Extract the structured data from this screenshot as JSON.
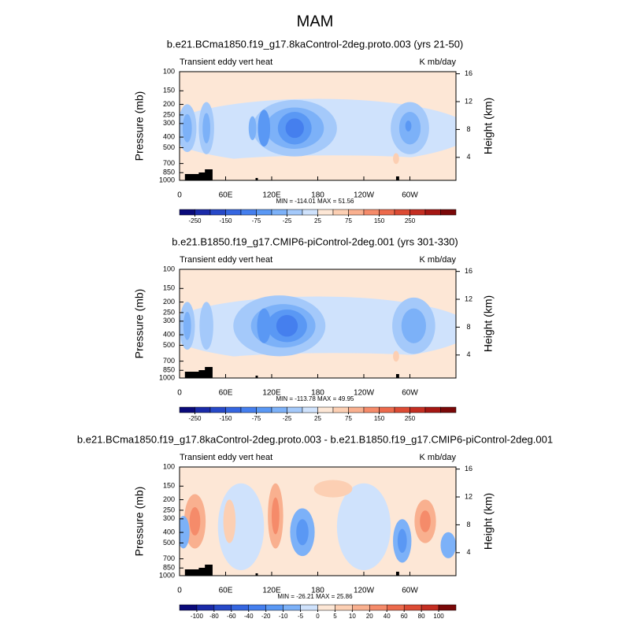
{
  "title": "MAM",
  "chart_data": [
    {
      "type": "contour",
      "title": "b.e21.BCma1850.f19_g17.8kaControl-2deg.proto.003 (yrs 21-50)",
      "left_label": "Transient eddy vert heat",
      "right_label": "K mb/day",
      "ylabel": "Pressure (mb)",
      "y2label": "Height (km)",
      "xlim": [
        0,
        360
      ],
      "xticks": [
        0,
        {
          "value": 60,
          "label": "60E"
        },
        {
          "value": 120,
          "label": "120E"
        },
        180,
        {
          "value": 240,
          "label": "120W"
        },
        {
          "value": 300,
          "label": "60W"
        }
      ],
      "ylim": [
        1000,
        100
      ],
      "ylog": true,
      "yticks": [
        100,
        150,
        200,
        250,
        300,
        400,
        500,
        700,
        850,
        1000
      ],
      "y2lim": [
        0.7,
        16.3
      ],
      "y2ticks": [
        4,
        8,
        12,
        16
      ],
      "annotation": "MIN = -114.01  MAX =  51.56",
      "colorbar": {
        "ticks": [
          -250,
          -150,
          -75,
          -25,
          25,
          75,
          150,
          250
        ],
        "colors": [
          "#0a0a7a",
          "#1a2aa8",
          "#2749c8",
          "#3566e0",
          "#457fee",
          "#5a98f4",
          "#7cb1f8",
          "#a4c9fa",
          "#cfe2fc",
          "#fde7d6",
          "#fccfb3",
          "#f9b08f",
          "#f58b6a",
          "#ec6a4c",
          "#dc4b34",
          "#c42e22",
          "#a51713",
          "#7a0808"
        ]
      }
    },
    {
      "type": "contour",
      "title": "b.e21.B1850.f19_g17.CMIP6-piControl-2deg.001 (yrs 301-330)",
      "left_label": "Transient eddy vert heat",
      "right_label": "K mb/day",
      "ylabel": "Pressure (mb)",
      "y2label": "Height (km)",
      "xlim": [
        0,
        360
      ],
      "xticks": [
        0,
        {
          "value": 60,
          "label": "60E"
        },
        {
          "value": 120,
          "label": "120E"
        },
        180,
        {
          "value": 240,
          "label": "120W"
        },
        {
          "value": 300,
          "label": "60W"
        }
      ],
      "ylim": [
        1000,
        100
      ],
      "ylog": true,
      "yticks": [
        100,
        150,
        200,
        250,
        300,
        400,
        500,
        700,
        850,
        1000
      ],
      "y2lim": [
        0.7,
        16.3
      ],
      "y2ticks": [
        4,
        8,
        12,
        16
      ],
      "annotation": "MIN = -113.78  MAX =  49.95",
      "colorbar": {
        "ticks": [
          -250,
          -150,
          -75,
          -25,
          25,
          75,
          150,
          250
        ],
        "colors": [
          "#0a0a7a",
          "#1a2aa8",
          "#2749c8",
          "#3566e0",
          "#457fee",
          "#5a98f4",
          "#7cb1f8",
          "#a4c9fa",
          "#cfe2fc",
          "#fde7d6",
          "#fccfb3",
          "#f9b08f",
          "#f58b6a",
          "#ec6a4c",
          "#dc4b34",
          "#c42e22",
          "#a51713",
          "#7a0808"
        ]
      }
    },
    {
      "type": "contour",
      "title": "b.e21.BCma1850.f19_g17.8kaControl-2deg.proto.003 - b.e21.B1850.f19_g17.CMIP6-piControl-2deg.001",
      "left_label": "Transient eddy vert heat",
      "right_label": "K mb/day",
      "ylabel": "Pressure (mb)",
      "y2label": "Height (km)",
      "xlim": [
        0,
        360
      ],
      "xticks": [
        0,
        {
          "value": 60,
          "label": "60E"
        },
        {
          "value": 120,
          "label": "120E"
        },
        180,
        {
          "value": 240,
          "label": "120W"
        },
        {
          "value": 300,
          "label": "60W"
        }
      ],
      "ylim": [
        1000,
        100
      ],
      "ylog": true,
      "yticks": [
        100,
        150,
        200,
        250,
        300,
        400,
        500,
        700,
        850,
        1000
      ],
      "y2lim": [
        0.7,
        16.3
      ],
      "y2ticks": [
        4,
        8,
        12,
        16
      ],
      "annotation": "MIN = -26.21  MAX =  25.86",
      "colorbar": {
        "ticks": [
          -100,
          -80,
          -60,
          -40,
          -20,
          -10,
          -5,
          0,
          5,
          10,
          20,
          40,
          60,
          80,
          100
        ],
        "colors": [
          "#0a0a7a",
          "#1a2aa8",
          "#2749c8",
          "#3566e0",
          "#457fee",
          "#5a98f4",
          "#7cb1f8",
          "#cfe2fc",
          "#fde7d6",
          "#fccfb3",
          "#f9b08f",
          "#f58b6a",
          "#ec6a4c",
          "#dc4b34",
          "#c42e22",
          "#7a0808"
        ]
      }
    }
  ]
}
